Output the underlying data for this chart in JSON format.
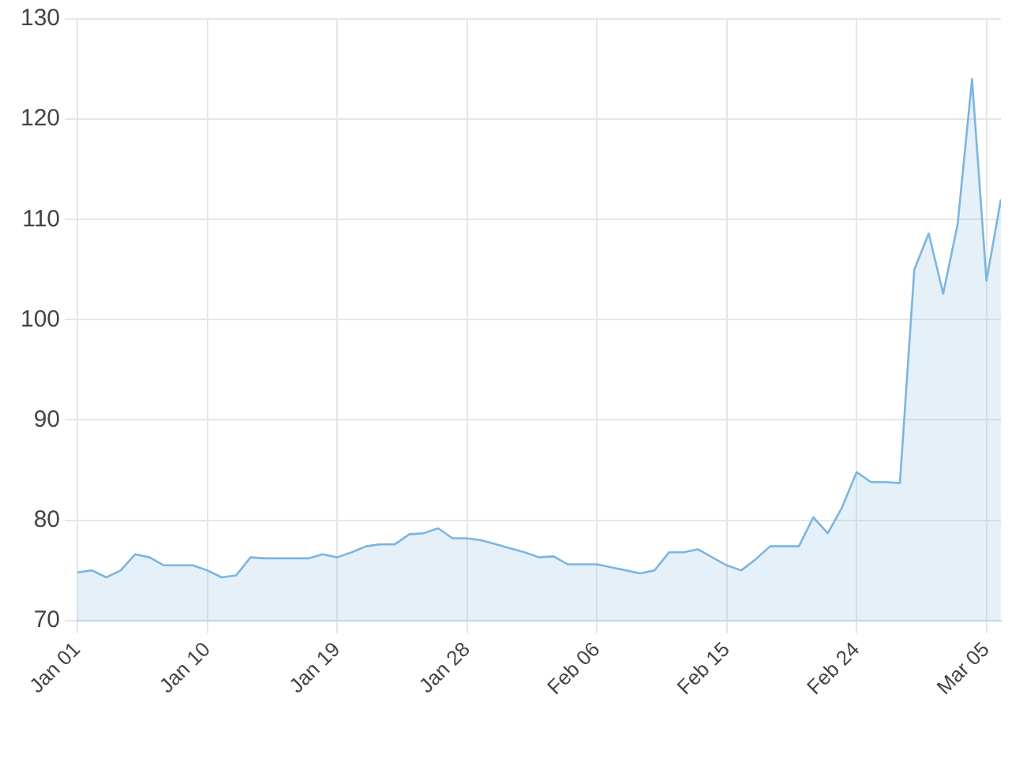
{
  "chart_data": {
    "type": "area",
    "x": [
      "--01-01",
      "--01-02",
      "--01-03",
      "--01-04",
      "--01-05",
      "--01-06",
      "--01-07",
      "--01-08",
      "--01-09",
      "--01-10",
      "--01-11",
      "--01-12",
      "--01-13",
      "--01-14",
      "--01-15",
      "--01-16",
      "--01-17",
      "--01-18",
      "--01-19",
      "--01-20",
      "--01-21",
      "--01-22",
      "--01-23",
      "--01-24",
      "--01-25",
      "--01-26",
      "--01-27",
      "--01-28",
      "--01-29",
      "--01-30",
      "--01-31",
      "--02-01",
      "--02-02",
      "--02-03",
      "--02-04",
      "--02-05",
      "--02-06",
      "--02-07",
      "--02-08",
      "--02-09",
      "--02-10",
      "--02-11",
      "--02-12",
      "--02-13",
      "--02-14",
      "--02-15",
      "--02-16",
      "--02-17",
      "--02-18",
      "--02-19",
      "--02-20",
      "--02-21",
      "--02-22",
      "--02-23",
      "--02-24",
      "--02-25",
      "--02-26",
      "--02-27",
      "--02-28",
      "--03-01",
      "--03-02",
      "--03-03",
      "--03-04",
      "--03-05",
      "--03-06"
    ],
    "series": [
      {
        "color": "#7cb5e0",
        "values": [
          74.8,
          75.0,
          74.3,
          75.0,
          76.6,
          76.3,
          75.5,
          75.5,
          75.5,
          75.0,
          74.3,
          74.5,
          76.3,
          76.2,
          76.2,
          76.2,
          76.2,
          76.6,
          76.3,
          76.8,
          77.4,
          77.6,
          77.6,
          78.6,
          78.7,
          79.2,
          78.2,
          78.2,
          78.0,
          77.6,
          77.2,
          76.8,
          76.3,
          76.4,
          75.6,
          75.6,
          75.6,
          75.3,
          75.0,
          74.7,
          75.0,
          76.8,
          76.8,
          77.1,
          76.3,
          75.5,
          75.0,
          76.1,
          77.4,
          77.4,
          77.4,
          80.3,
          78.7,
          81.3,
          84.8,
          83.8,
          83.8,
          83.7,
          105.0,
          108.6,
          102.6,
          109.5,
          124.0,
          103.9,
          112.0
        ]
      }
    ],
    "xlim": [
      "--01-01",
      "--03-06"
    ],
    "xticks": [
      {
        "value": "--01-01",
        "label": "Jan 01"
      },
      {
        "value": "--01-10",
        "label": "Jan 10"
      },
      {
        "value": "--01-19",
        "label": "Jan 19"
      },
      {
        "value": "--01-28",
        "label": "Jan 28"
      },
      {
        "value": "--02-06",
        "label": "Feb 06"
      },
      {
        "value": "--02-15",
        "label": "Feb 15"
      },
      {
        "value": "--02-24",
        "label": "Feb 24"
      },
      {
        "value": "--03-05",
        "label": "Mar 05"
      }
    ],
    "ylim": [
      70,
      130
    ],
    "yticks": [
      70,
      80,
      90,
      100,
      110,
      120,
      130
    ],
    "grid": true,
    "marker": "none",
    "line_style": "solid"
  }
}
